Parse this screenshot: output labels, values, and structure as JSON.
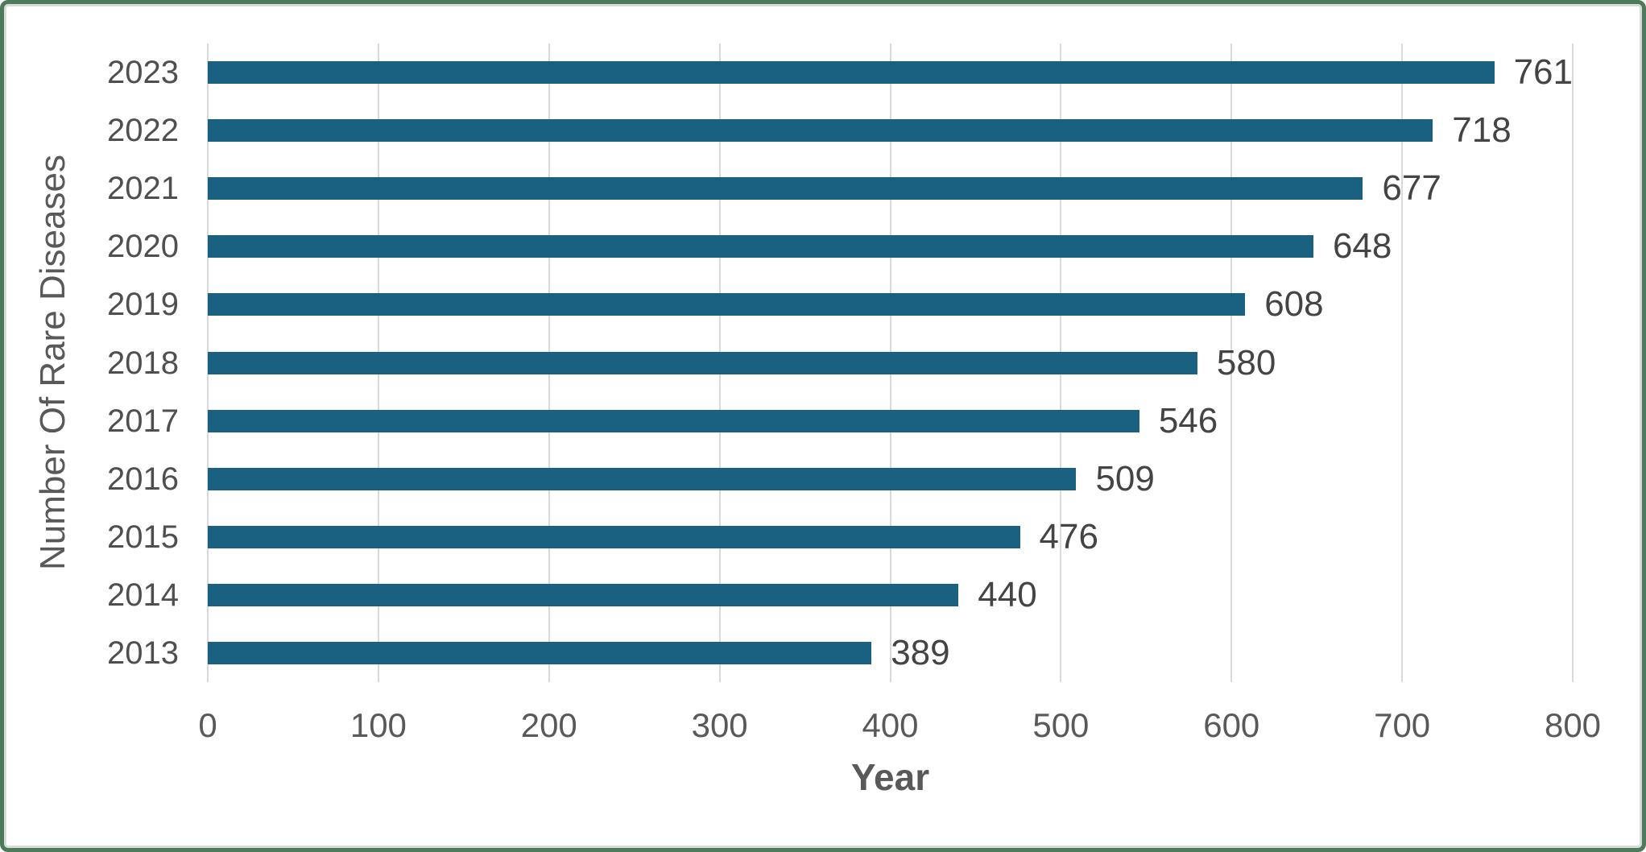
{
  "chart_data": {
    "type": "bar",
    "orientation": "horizontal",
    "categories": [
      "2023",
      "2022",
      "2021",
      "2020",
      "2019",
      "2018",
      "2017",
      "2016",
      "2015",
      "2014",
      "2013"
    ],
    "values": [
      761,
      718,
      677,
      648,
      608,
      580,
      546,
      509,
      476,
      440,
      389
    ],
    "data_labels": [
      "761",
      "718",
      "677",
      "648",
      "608",
      "580",
      "546",
      "509",
      "476",
      "440",
      "389"
    ],
    "title": "",
    "xlabel": "Year",
    "ylabel": "Number Of Rare Diseases",
    "xlim": [
      0,
      800
    ],
    "xticks": [
      0,
      100,
      200,
      300,
      400,
      500,
      600,
      700,
      800
    ],
    "grid": "vertical",
    "legend": "none",
    "bar_color": "#1a6080"
  },
  "styles": {
    "frame_border_color": "#4d7a58",
    "gridline_color": "#d9d9d9",
    "category_label_color": "#4f4f4f",
    "value_label_color": "#444444",
    "tick_label_color": "#595959",
    "axis_title_color": "#595959"
  }
}
